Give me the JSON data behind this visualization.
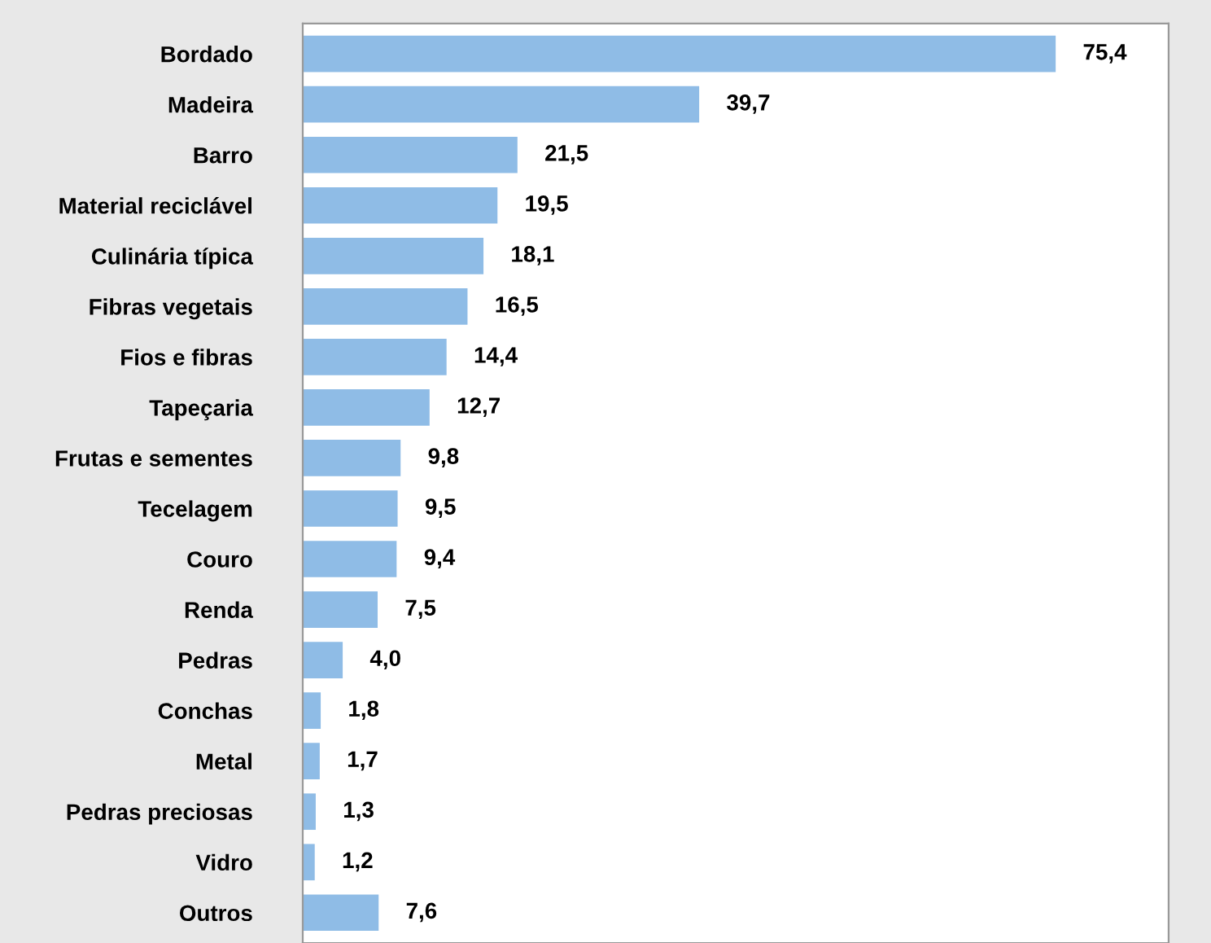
{
  "chart_data": {
    "type": "bar",
    "orientation": "horizontal",
    "categories": [
      "Bordado",
      "Madeira",
      "Barro",
      "Material reciclável",
      "Culinária típica",
      "Fibras vegetais",
      "Fios e fibras",
      "Tapeçaria",
      "Frutas e sementes",
      "Tecelagem",
      "Couro",
      "Renda",
      "Pedras",
      "Conchas",
      "Metal",
      "Pedras preciosas",
      "Vidro",
      "Outros"
    ],
    "values": [
      75.4,
      39.7,
      21.5,
      19.5,
      18.1,
      16.5,
      14.4,
      12.7,
      9.8,
      9.5,
      9.4,
      7.5,
      4.0,
      1.8,
      1.7,
      1.3,
      1.2,
      7.6
    ],
    "value_labels": [
      "75,4",
      "39,7",
      "21,5",
      "19,5",
      "18,1",
      "16,5",
      "14,4",
      "12,7",
      "9,8",
      "9,5",
      "9,4",
      "7,5",
      "4,0",
      "1,8",
      "1,7",
      "1,3",
      "1,2",
      "7,6"
    ],
    "color": "#8fbce6",
    "grid": false,
    "legend": false
  }
}
